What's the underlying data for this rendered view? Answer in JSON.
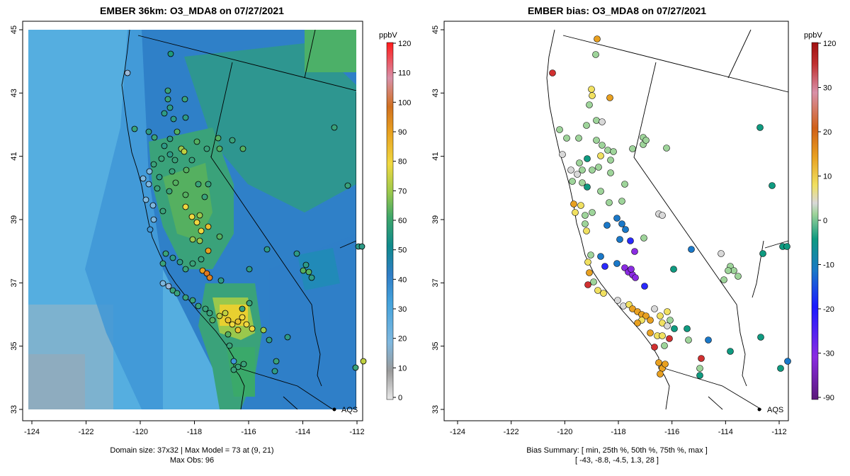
{
  "chart_data": [
    {
      "type": "heatmap",
      "title": "EMBER 36km: O3_MDA8 on 07/27/2021",
      "x_ticks": [
        "-124",
        "-122",
        "-120",
        "-118",
        "-116",
        "-114",
        "-112"
      ],
      "y_ticks": [
        "33",
        "35",
        "37",
        "39",
        "41",
        "43",
        "45"
      ],
      "xlim": [
        -124,
        -112
      ],
      "ylim": [
        33,
        45
      ],
      "colorbar": {
        "unit": "ppbV",
        "ticks": [
          "120",
          "110",
          "100",
          "90",
          "80",
          "70",
          "60",
          "50",
          "40",
          "30",
          "20",
          "10",
          "0"
        ],
        "range": [
          -2,
          121
        ]
      },
      "annotation": "AQS",
      "caption_lines": [
        "Domain size: 37x32 | Max Model = 73 at (9, 21)",
        "Max Obs: 96"
      ]
    },
    {
      "type": "scatter",
      "title": "EMBER bias: O3_MDA8 on 07/27/2021",
      "x_ticks": [
        "-124",
        "-122",
        "-120",
        "-118",
        "-116",
        "-114",
        "-112"
      ],
      "y_ticks": [
        "33",
        "35",
        "37",
        "39",
        "41",
        "43",
        "45"
      ],
      "xlim": [
        -124,
        -112
      ],
      "ylim": [
        33,
        45
      ],
      "colorbar": {
        "unit": "ppbV",
        "ticks": [
          "120",
          "30",
          "20",
          "10",
          "0",
          "-10",
          "-20",
          "-30",
          "-90"
        ],
        "range": [
          -90,
          120
        ]
      },
      "annotation": "AQS",
      "caption_lines": [
        "Bias Summary: [ min, 25th %, 50th %, 75th %, max ]",
        "[ -43,   -8.8,   -4.5,   1.3,   28 ]"
      ],
      "bias_summary": {
        "min": -43,
        "p25": -8.8,
        "p50": -4.5,
        "p75": 1.3,
        "max": 28
      }
    }
  ],
  "colors": {
    "background": "#ffffff",
    "ocean_model": "#4fa8dd",
    "ocean_far": "#8ab0c8",
    "inland_model": "#3b8fd0",
    "valley_model": "#55b070",
    "hotspot_model": "#e8d030",
    "outline": "#000000"
  }
}
